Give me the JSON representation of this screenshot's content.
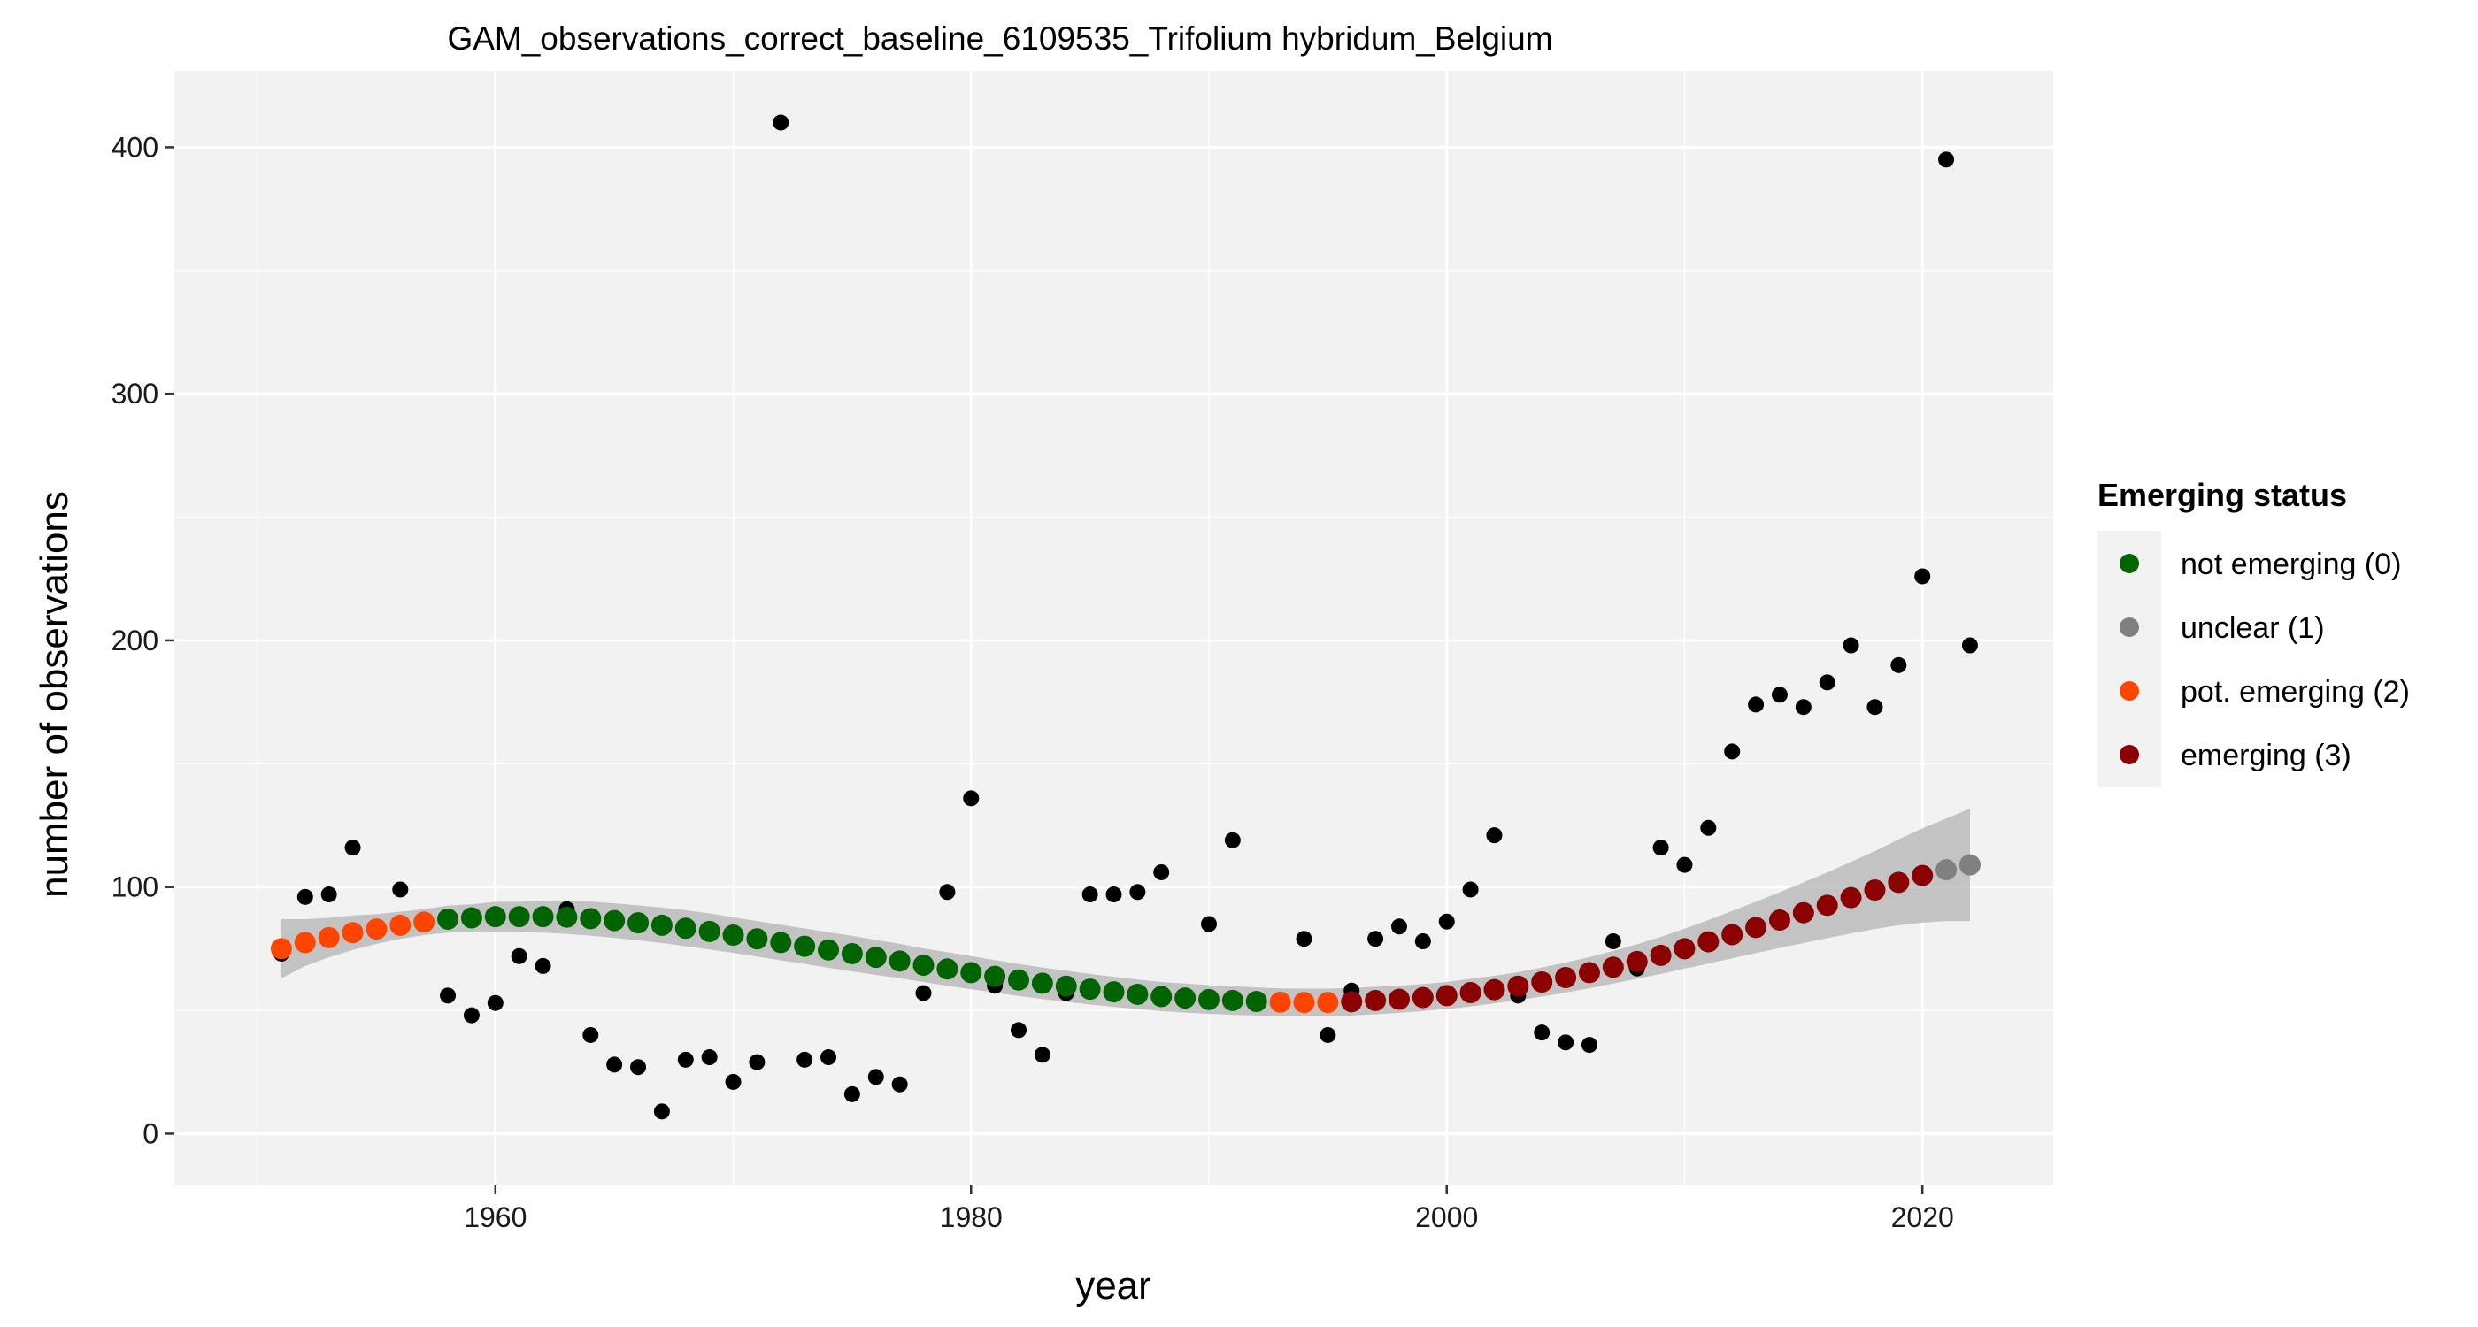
{
  "chart_data": {
    "type": "scatter",
    "title": "GAM_observations_correct_baseline_6109535_Trifolium hybridum_Belgium",
    "xlabel": "year",
    "ylabel": "number of observations",
    "xlim": [
      1946.5,
      2025.5
    ],
    "ylim": [
      -21,
      431
    ],
    "x_ticks": [
      1960,
      1980,
      2000,
      2020
    ],
    "y_ticks": [
      0,
      100,
      200,
      300,
      400
    ],
    "grid": true,
    "legend": {
      "title": "Emerging status",
      "placement": "right",
      "entries": [
        {
          "label": "not emerging (0)",
          "color": "#006400"
        },
        {
          "label": "unclear (1)",
          "color": "#808080"
        },
        {
          "label": "pot. emerging (2)",
          "color": "#FF4500"
        },
        {
          "label": "emerging (3)",
          "color": "#8B0000"
        }
      ]
    },
    "observations": {
      "color": "#000000",
      "x": [
        1951,
        1952,
        1953,
        1954,
        1956,
        1958,
        1959,
        1960,
        1961,
        1962,
        1963,
        1964,
        1965,
        1966,
        1967,
        1968,
        1969,
        1970,
        1971,
        1972,
        1973,
        1974,
        1975,
        1976,
        1977,
        1978,
        1979,
        1980,
        1981,
        1982,
        1983,
        1984,
        1985,
        1986,
        1987,
        1988,
        1990,
        1991,
        1994,
        1995,
        1996,
        1997,
        1998,
        1999,
        2000,
        2001,
        2002,
        2003,
        2004,
        2005,
        2006,
        2007,
        2008,
        2009,
        2010,
        2011,
        2012,
        2013,
        2014,
        2015,
        2016,
        2017,
        2018,
        2019,
        2020,
        2021,
        2022
      ],
      "y": [
        73,
        96,
        97,
        116,
        99,
        56,
        48,
        53,
        72,
        68,
        91,
        40,
        28,
        27,
        9,
        30,
        31,
        21,
        29,
        410,
        30,
        31,
        16,
        23,
        20,
        57,
        98,
        136,
        60,
        42,
        32,
        57,
        97,
        97,
        98,
        106,
        85,
        119,
        79,
        40,
        58,
        79,
        84,
        78,
        86,
        99,
        121,
        56,
        41,
        37,
        36,
        78,
        67,
        116,
        109,
        124,
        155,
        174,
        178,
        173,
        183,
        198,
        173,
        190,
        226,
        395,
        198
      ]
    },
    "gam_fit": {
      "x": [
        1951,
        1952,
        1953,
        1954,
        1955,
        1956,
        1957,
        1958,
        1959,
        1960,
        1961,
        1962,
        1963,
        1964,
        1965,
        1966,
        1967,
        1968,
        1969,
        1970,
        1971,
        1972,
        1973,
        1974,
        1975,
        1976,
        1977,
        1978,
        1979,
        1980,
        1981,
        1982,
        1983,
        1984,
        1985,
        1986,
        1987,
        1988,
        1989,
        1990,
        1991,
        1992,
        1993,
        1994,
        1995,
        1996,
        1997,
        1998,
        1999,
        2000,
        2001,
        2002,
        2003,
        2004,
        2005,
        2006,
        2007,
        2008,
        2009,
        2010,
        2011,
        2012,
        2013,
        2014,
        2015,
        2016,
        2017,
        2018,
        2019,
        2020,
        2021,
        2022
      ],
      "y": [
        75,
        77.5,
        79.5,
        81.5,
        83,
        84.5,
        85.8,
        87,
        87.5,
        88,
        88,
        88,
        87.8,
        87.2,
        86.4,
        85.5,
        84.5,
        83.3,
        82,
        80.5,
        79,
        77.5,
        76,
        74.5,
        73,
        71.5,
        70,
        68.3,
        66.8,
        65.3,
        63.8,
        62.3,
        61,
        59.8,
        58.6,
        57.5,
        56.5,
        55.6,
        55,
        54.4,
        54,
        53.6,
        53.3,
        53.2,
        53.2,
        53.5,
        54,
        54.5,
        55.2,
        56,
        57.2,
        58.4,
        59.8,
        61.5,
        63.3,
        65.3,
        67.5,
        69.8,
        72.3,
        75,
        77.8,
        80.7,
        83.6,
        86.6,
        89.6,
        92.6,
        95.7,
        98.8,
        101.9,
        104.7,
        107,
        109
      ],
      "lower": [
        63,
        68,
        71.5,
        74.5,
        77,
        79,
        80.5,
        81.5,
        82,
        82,
        82,
        81.5,
        81,
        80.3,
        79.4,
        78.4,
        77.3,
        76,
        74.7,
        73.3,
        71.8,
        70.3,
        68.8,
        67.3,
        65.8,
        64.4,
        63,
        61.5,
        60,
        58.6,
        57.2,
        55.8,
        54.6,
        53.5,
        52.4,
        51.4,
        50.5,
        49.7,
        49.1,
        48.6,
        48.2,
        47.9,
        47.7,
        47.6,
        47.6,
        47.9,
        48.4,
        49,
        49.7,
        50.5,
        51.6,
        52.8,
        54.1,
        55.6,
        57.2,
        59,
        60.9,
        62.8,
        64.8,
        66.9,
        69,
        71.1,
        73.2,
        75.3,
        77.3,
        79.3,
        81.2,
        83,
        84.5,
        85.6,
        86.2,
        86.2
      ],
      "upper": [
        87,
        87,
        87.5,
        88.5,
        89,
        90,
        91,
        92.5,
        93,
        94,
        94,
        94.5,
        94.6,
        94.1,
        93.4,
        92.6,
        91.7,
        90.6,
        89.3,
        87.7,
        86.2,
        84.7,
        83.2,
        81.7,
        80.2,
        78.6,
        77,
        75.1,
        73.6,
        72,
        70.4,
        68.8,
        67.4,
        66.1,
        64.8,
        63.6,
        62.5,
        61.5,
        60.9,
        60.2,
        59.8,
        59.3,
        58.9,
        58.8,
        58.8,
        59.1,
        59.6,
        60,
        60.7,
        61.5,
        62.8,
        64,
        65.5,
        67.4,
        69.4,
        71.6,
        74.1,
        76.8,
        79.8,
        83.1,
        86.6,
        90.3,
        94,
        97.9,
        101.9,
        105.9,
        110.2,
        114.6,
        119.3,
        123.8,
        127.8,
        131.8
      ],
      "status": [
        2,
        2,
        2,
        2,
        2,
        2,
        2,
        0,
        0,
        0,
        0,
        0,
        0,
        0,
        0,
        0,
        0,
        0,
        0,
        0,
        0,
        0,
        0,
        0,
        0,
        0,
        0,
        0,
        0,
        0,
        0,
        0,
        0,
        0,
        0,
        0,
        0,
        0,
        0,
        0,
        0,
        0,
        2,
        2,
        2,
        3,
        3,
        3,
        3,
        3,
        3,
        3,
        3,
        3,
        3,
        3,
        3,
        3,
        3,
        3,
        3,
        3,
        3,
        3,
        3,
        3,
        3,
        3,
        3,
        3,
        1,
        1
      ]
    }
  }
}
